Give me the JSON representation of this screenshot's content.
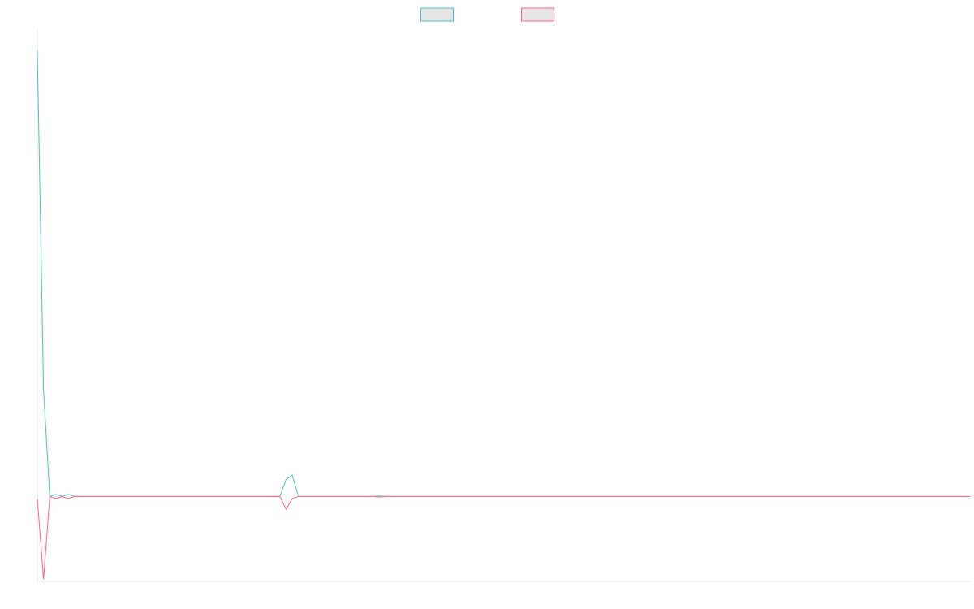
{
  "chart_data": {
    "type": "line",
    "title": "",
    "xlabel": "",
    "ylabel": "",
    "grid": false,
    "legend_position": "top-center",
    "ylim": [
      -4,
      22
    ],
    "x": [
      0,
      1,
      2,
      3,
      4,
      5,
      6,
      7,
      8,
      9,
      10,
      11,
      12,
      13,
      14,
      15,
      16,
      17,
      18,
      19,
      20,
      21,
      22,
      23,
      24,
      25,
      26,
      27,
      28,
      29,
      30,
      31,
      32,
      33,
      34,
      35,
      36,
      37,
      38,
      39,
      40,
      41,
      42,
      43,
      44,
      45,
      46,
      47,
      48,
      49,
      50,
      51,
      52,
      53,
      54,
      55,
      56,
      57,
      58,
      59,
      60,
      61,
      62,
      63,
      64,
      65,
      66,
      67,
      68,
      69,
      70,
      71,
      72,
      73,
      74,
      75,
      76,
      77,
      78,
      79,
      80,
      81,
      82,
      83,
      84,
      85,
      86,
      87,
      88,
      89,
      90,
      91,
      92,
      93,
      94,
      95,
      96,
      97,
      98,
      99,
      100,
      101,
      102,
      103,
      104,
      105,
      106,
      107,
      108,
      109,
      110,
      111,
      112,
      113,
      114,
      115,
      116,
      117,
      118,
      119,
      120,
      121,
      122,
      123,
      124,
      125,
      126,
      127,
      128,
      129,
      130,
      131,
      132,
      133,
      134,
      135,
      136,
      137,
      138,
      139,
      140,
      141,
      142,
      143,
      144,
      145,
      146,
      147,
      148,
      149,
      150
    ],
    "series": [
      {
        "color": "#4bc0c0",
        "values": [
          21,
          5,
          0,
          0.1,
          0,
          0.1,
          0,
          0,
          0,
          0,
          0,
          0,
          0,
          0,
          0,
          0,
          0,
          0,
          0,
          0,
          0,
          0,
          0,
          0,
          0,
          0,
          0,
          0,
          0,
          0,
          0,
          0,
          0,
          0,
          0,
          0,
          0,
          0,
          0,
          0,
          0.8,
          1,
          0,
          0,
          0,
          0,
          0,
          0,
          0,
          0,
          0,
          0,
          0,
          0,
          0,
          0.03,
          0,
          0,
          0,
          0,
          0,
          0,
          0,
          0,
          0,
          0,
          0,
          0,
          0,
          0,
          0,
          0,
          0,
          0,
          0,
          0,
          0,
          0,
          0,
          0,
          0,
          0,
          0,
          0,
          0,
          0,
          0,
          0,
          0,
          0,
          0,
          0,
          0,
          0,
          0,
          0,
          0,
          0,
          0,
          0,
          0,
          0,
          0,
          0,
          0,
          0,
          0,
          0,
          0,
          0,
          0,
          0,
          0,
          0,
          0,
          0,
          0,
          0,
          0,
          0,
          0,
          0,
          0,
          0,
          0,
          0,
          0,
          0,
          0,
          0,
          0,
          0,
          0,
          0,
          0,
          0,
          0,
          0,
          0,
          0,
          0,
          0,
          0,
          0,
          0,
          0,
          0,
          0,
          0,
          0,
          0
        ]
      },
      {
        "color": "#ff6384",
        "values": [
          -0.1,
          -3.9,
          0,
          -0.1,
          0,
          -0.1,
          0,
          0,
          0,
          0,
          0,
          0,
          0,
          0,
          0,
          0,
          0,
          0,
          0,
          0,
          0,
          0,
          0,
          0,
          0,
          0,
          0,
          0,
          0,
          0,
          0,
          0,
          0,
          0,
          0,
          0,
          0,
          0,
          0,
          0,
          -0.6,
          -0.1,
          0,
          0,
          0,
          0,
          0,
          0,
          0,
          0,
          0,
          0,
          0,
          0,
          0,
          -0.03,
          0,
          0,
          0,
          0,
          0,
          0,
          0,
          0,
          0,
          0,
          0,
          0,
          0,
          0,
          0,
          0,
          0,
          0,
          0,
          0,
          0,
          0,
          0,
          0,
          0,
          0,
          0,
          0,
          0,
          0,
          0,
          0,
          0,
          0,
          0,
          0,
          0,
          0,
          0,
          0,
          0,
          0,
          0,
          0,
          0,
          0,
          0,
          0,
          0,
          0,
          0,
          0,
          0,
          0,
          0,
          0,
          0,
          0,
          0,
          0,
          0,
          0,
          0,
          0,
          0,
          0,
          0,
          0,
          0,
          0,
          0,
          0,
          0,
          0,
          0,
          0,
          0,
          0,
          0,
          0,
          0,
          0,
          0,
          0,
          0,
          0,
          0,
          0,
          0,
          0,
          0,
          0,
          0,
          0,
          0
        ]
      }
    ]
  }
}
